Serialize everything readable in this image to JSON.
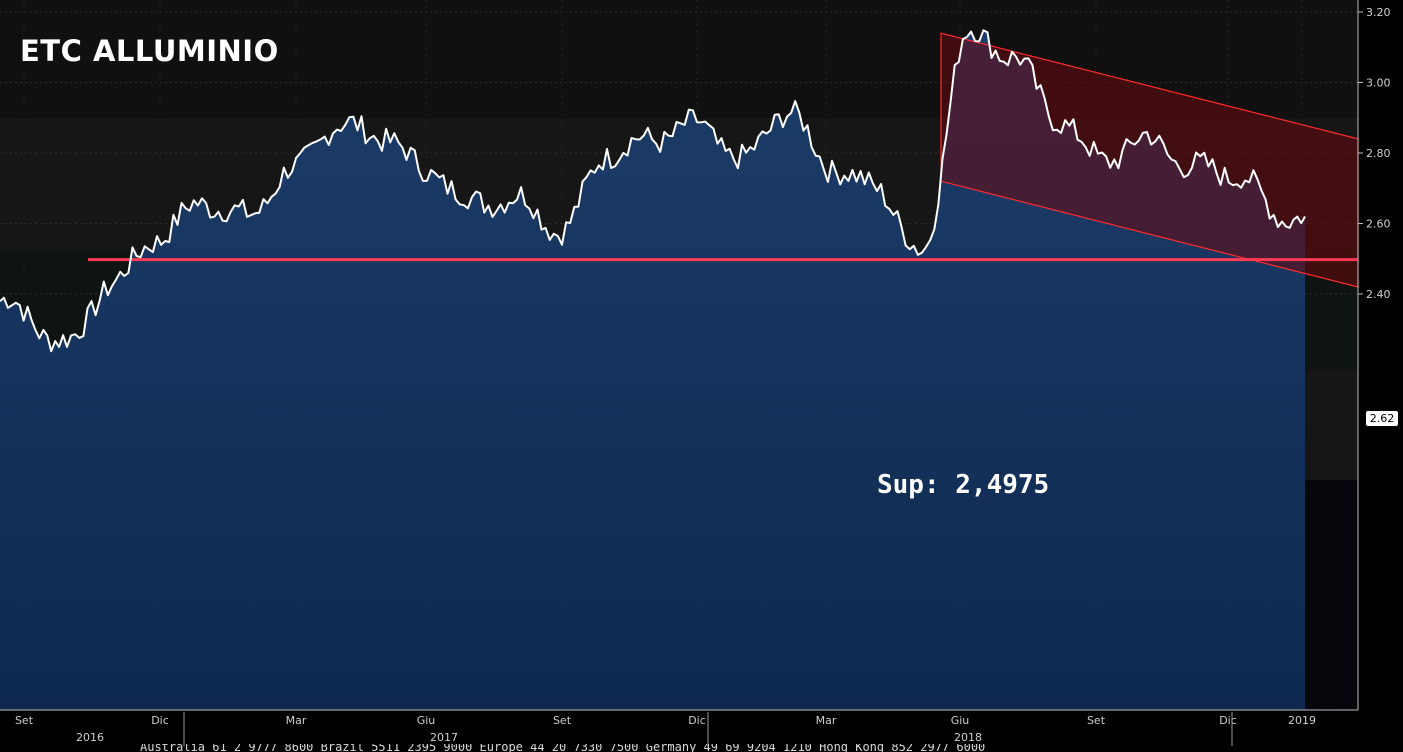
{
  "chart_data": {
    "type": "line",
    "title": "ETC ALLUMINIO",
    "yticks": [
      "3.20",
      "3.00",
      "2.80",
      "2.60",
      "2.40"
    ],
    "ylim": [
      2.2,
      3.2
    ],
    "x_month_labels": [
      "Set",
      "Dic",
      "Mar",
      "Giu",
      "Set",
      "Dic",
      "Mar",
      "Giu",
      "Set",
      "Dic",
      "2019"
    ],
    "x_year_labels": [
      "2016",
      "2017",
      "2018"
    ],
    "last_value_label": "2.62",
    "support": {
      "label": "Sup: 2,4975",
      "value": 2.4975
    },
    "channel": {
      "start": "2018-05",
      "upper": [
        3.14,
        2.84
      ],
      "lower": [
        2.72,
        2.42
      ]
    },
    "series": [
      {
        "x": [
          "2016-08",
          "2016-09",
          "2016-10",
          "2016-11",
          "2016-12",
          "2017-01",
          "2017-02",
          "2017-03",
          "2017-04",
          "2017-05",
          "2017-06",
          "2017-07",
          "2017-08",
          "2017-09",
          "2017-10",
          "2017-11",
          "2017-12",
          "2018-01",
          "2018-02",
          "2018-03",
          "2018-04",
          "2018-05",
          "2018-06",
          "2018-07",
          "2018-08",
          "2018-09",
          "2018-10",
          "2018-11",
          "2018-12",
          "2019-01"
        ],
        "values": [
          2.38,
          2.26,
          2.43,
          2.56,
          2.66,
          2.62,
          2.75,
          2.88,
          2.85,
          2.75,
          2.66,
          2.67,
          2.58,
          2.8,
          2.84,
          2.88,
          2.78,
          2.92,
          2.76,
          2.7,
          2.51,
          3.14,
          3.08,
          2.9,
          2.78,
          2.84,
          2.76,
          2.74,
          2.62,
          2.62
        ]
      }
    ],
    "grid": false,
    "legend": "none"
  },
  "footer_text": "Australia 61 2 9777 8600 Brazil 5511 2395 9000 Europe 44 20 7330 7500 Germany 49 69 9204 1210 Hong Kong 852 2977 6000"
}
